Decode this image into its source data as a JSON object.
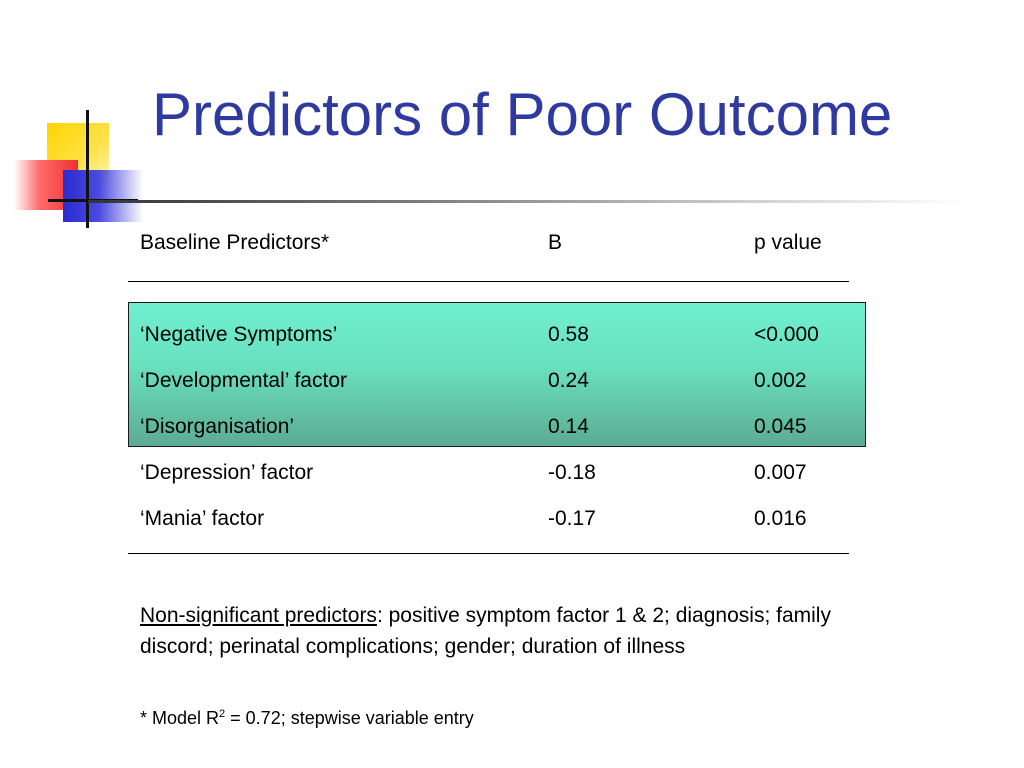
{
  "slide": {
    "title": "Predictors of Poor Outcome"
  },
  "table": {
    "headers": [
      "Baseline Predictors*",
      "B",
      "p value"
    ],
    "rows": [
      {
        "predictor": "‘Negative Symptoms’",
        "b": "0.58",
        "p": "<0.000",
        "highlighted": true
      },
      {
        "predictor": "‘Developmental’ factor",
        "b": "0.24",
        "p": "0.002",
        "highlighted": true
      },
      {
        "predictor": "‘Disorganisation’",
        "b": "0.14",
        "p": "0.045",
        "highlighted": true
      },
      {
        "predictor": "‘Depression’ factor",
        "b": "-0.18",
        "p": "0.007",
        "highlighted": false
      },
      {
        "predictor": "‘Mania’ factor",
        "b": "-0.17",
        "p": "0.016",
        "highlighted": false
      }
    ]
  },
  "notes": {
    "nonsig_label": "Non-significant predictors",
    "nonsig_text": ": positive symptom factor 1 & 2; diagnosis; family discord; perinatal complications; gender; duration of illness",
    "footnote_prefix": "* Model R",
    "footnote_sup": "2",
    "footnote_suffix": " = 0.72; stepwise variable entry"
  },
  "colors": {
    "title": "#2e3a9f",
    "highlight_top": "#6ff0cf",
    "highlight_bottom": "#5cab92"
  }
}
